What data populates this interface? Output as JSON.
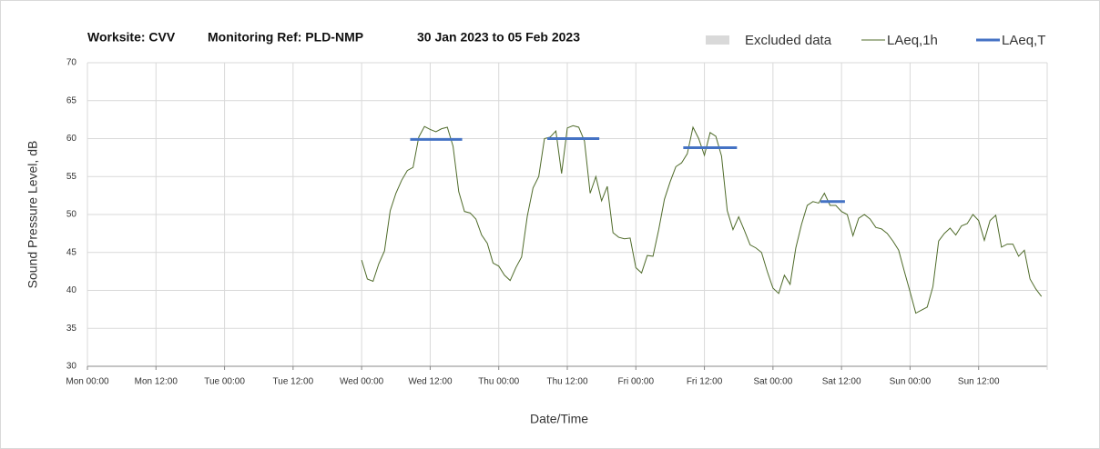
{
  "chart_data": {
    "type": "line",
    "title_parts": [
      "Worksite: CVV",
      "Monitoring Ref: PLD-NMP",
      "30 Jan 2023 to 05 Feb 2023"
    ],
    "xlabel": "Date/Time",
    "ylabel": "Sound Pressure Level, dB",
    "xlim": [
      0,
      168
    ],
    "xticks": [
      {
        "value": 0,
        "label": "Mon 00:00"
      },
      {
        "value": 12,
        "label": "Mon 12:00"
      },
      {
        "value": 24,
        "label": "Tue 00:00"
      },
      {
        "value": 36,
        "label": "Tue 12:00"
      },
      {
        "value": 48,
        "label": "Wed 00:00"
      },
      {
        "value": 60,
        "label": "Wed 12:00"
      },
      {
        "value": 72,
        "label": "Thu 00:00"
      },
      {
        "value": 84,
        "label": "Thu 12:00"
      },
      {
        "value": 96,
        "label": "Fri 00:00"
      },
      {
        "value": 108,
        "label": "Fri 12:00"
      },
      {
        "value": 120,
        "label": "Sat 00:00"
      },
      {
        "value": 132,
        "label": "Sat 12:00"
      },
      {
        "value": 144,
        "label": "Sun 00:00"
      },
      {
        "value": 156,
        "label": "Sun 12:00"
      }
    ],
    "ylim": [
      30,
      70
    ],
    "yticks": [
      30,
      35,
      40,
      45,
      50,
      55,
      60,
      65,
      70
    ],
    "grid": true,
    "legend": "top-right",
    "series": [
      {
        "name": "Excluded data",
        "color": "#d9d9d9",
        "values": []
      },
      {
        "name": "LAeq,1h",
        "color": "#4f6b2a",
        "x": [
          48,
          49,
          50,
          51,
          52,
          53,
          54,
          55,
          56,
          57,
          58,
          59,
          60,
          61,
          62,
          63,
          64,
          65,
          66,
          67,
          68,
          69,
          70,
          71,
          72,
          73,
          74,
          75,
          76,
          77,
          78,
          79,
          80,
          81,
          82,
          83,
          84,
          85,
          86,
          87,
          88,
          89,
          90,
          91,
          92,
          93,
          94,
          95,
          96,
          97,
          98,
          99,
          100,
          101,
          102,
          103,
          104,
          105,
          106,
          107,
          108,
          109,
          110,
          111,
          112,
          113,
          114,
          115,
          116,
          117,
          118,
          119,
          120,
          121,
          122,
          123,
          124,
          125,
          126,
          127,
          128,
          129,
          130,
          131,
          132,
          133,
          134,
          135,
          136,
          137,
          138,
          139,
          140,
          141,
          142,
          143,
          144,
          145,
          146,
          147,
          148,
          149,
          150,
          151,
          152,
          153,
          154,
          155,
          156,
          157,
          158,
          159,
          160,
          161,
          162,
          163,
          164,
          165,
          166,
          167
        ],
        "values": [
          44,
          41.5,
          41.2,
          43.5,
          45.2,
          50.5,
          52.8,
          54.5,
          55.8,
          56.2,
          60.2,
          61.6,
          61.2,
          60.9,
          61.3,
          61.5,
          59,
          53,
          50.4,
          50.2,
          49.4,
          47.3,
          46.2,
          43.6,
          43.2,
          42,
          41.3,
          43,
          44.4,
          49.8,
          53.5,
          55,
          60,
          60.2,
          61,
          55.4,
          61.4,
          61.7,
          61.5,
          59.7,
          52.8,
          55,
          51.8,
          53.7,
          47.6,
          47,
          46.8,
          46.9,
          43,
          42.3,
          44.6,
          44.5,
          48,
          52,
          54.3,
          56.3,
          56.8,
          58,
          61.5,
          60,
          57.8,
          60.8,
          60.3,
          57.7,
          50.5,
          48,
          49.7,
          47.9,
          46,
          45.6,
          45,
          42.5,
          40.3,
          39.6,
          42,
          40.8,
          45.6,
          48.7,
          51.2,
          51.7,
          51.5,
          52.8,
          51.2,
          51.2,
          50.4,
          50,
          47.2,
          49.5,
          50,
          49.4,
          48.3,
          48.1,
          47.5,
          46.5,
          45.3,
          42.5,
          39.8,
          37,
          37.4,
          37.8,
          40.5,
          46.5,
          47.5,
          48.2,
          47.3,
          48.5,
          48.8,
          50,
          49.2,
          46.6,
          49.2,
          49.9,
          45.7,
          46.1,
          46.1,
          44.5,
          45.3,
          41.5,
          40.2,
          39.2
        ]
      },
      {
        "name": "LAeq,T",
        "color": "#4472c4",
        "x_start": [
          56.5,
          80.5,
          104.3,
          128.3
        ],
        "x_end": [
          65.6,
          89.6,
          113.7,
          132.6
        ],
        "values": [
          59.9,
          60,
          58.8,
          51.7
        ]
      }
    ]
  }
}
